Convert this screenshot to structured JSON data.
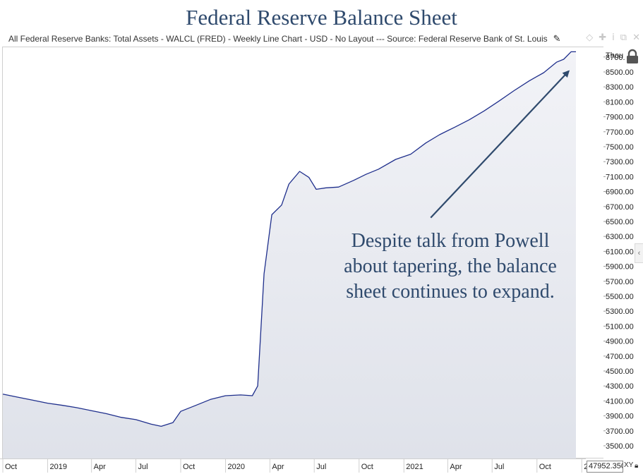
{
  "title": "Federal Reserve Balance Sheet",
  "subtitle": "All Federal Reserve Banks: Total Assets - WALCL (FRED) - Weekly Line Chart - USD - No Layout --- Source: Federal Reserve Bank of St. Louis",
  "annotation_lines": [
    "Despite talk from Powell",
    "about tapering, the balance",
    "sheet continues to expand."
  ],
  "current_value": "47952.350",
  "xy_label": "XY",
  "icons": {
    "edit": "pencil-icon",
    "window": [
      "diamond-icon",
      "pin-icon",
      "info-icon",
      "popout-icon",
      "close-icon"
    ],
    "lock": "lock-icon",
    "side_toggle": "chevron-left-icon"
  },
  "colors": {
    "title": "#2f4a6d",
    "line": "#1f2f8c",
    "area": "#e5e8ef",
    "arrow": "#2f4a6d"
  },
  "chart_data": {
    "type": "area",
    "units_label": "Thou",
    "yticks": [
      3500,
      3700,
      3900,
      4100,
      4300,
      4500,
      4700,
      4900,
      5100,
      5300,
      5500,
      5700,
      5900,
      6100,
      6300,
      6500,
      6700,
      6900,
      7100,
      7300,
      7500,
      7700,
      7900,
      8100,
      8300,
      8500,
      8700
    ],
    "ylim": [
      3330,
      8830
    ],
    "xlim": [
      "2018-10-01",
      "2021-12-20"
    ],
    "xtick_labels": [
      {
        "date": "2018-10-01",
        "label": "Oct"
      },
      {
        "date": "2019-01-01",
        "label": "2019"
      },
      {
        "date": "2019-04-01",
        "label": "Apr"
      },
      {
        "date": "2019-07-01",
        "label": "Jul"
      },
      {
        "date": "2019-10-01",
        "label": "Oct"
      },
      {
        "date": "2020-01-01",
        "label": "2020"
      },
      {
        "date": "2020-04-01",
        "label": "Apr"
      },
      {
        "date": "2020-07-01",
        "label": "Jul"
      },
      {
        "date": "2020-10-01",
        "label": "Oct"
      },
      {
        "date": "2021-01-01",
        "label": "2021"
      },
      {
        "date": "2021-04-01",
        "label": "Apr"
      },
      {
        "date": "2021-07-01",
        "label": "Jul"
      },
      {
        "date": "2021-10-01",
        "label": "Oct"
      },
      {
        "date": "2022-01-01",
        "label": "2022"
      }
    ],
    "series": [
      {
        "points": [
          [
            "2018-10-01",
            4190
          ],
          [
            "2018-11-01",
            4150
          ],
          [
            "2018-12-01",
            4110
          ],
          [
            "2019-01-01",
            4070
          ],
          [
            "2019-02-01",
            4040
          ],
          [
            "2019-03-01",
            4010
          ],
          [
            "2019-04-01",
            3970
          ],
          [
            "2019-05-01",
            3930
          ],
          [
            "2019-06-01",
            3880
          ],
          [
            "2019-07-01",
            3850
          ],
          [
            "2019-08-01",
            3790
          ],
          [
            "2019-08-22",
            3760
          ],
          [
            "2019-09-15",
            3810
          ],
          [
            "2019-10-01",
            3960
          ],
          [
            "2019-11-01",
            4040
          ],
          [
            "2019-12-01",
            4120
          ],
          [
            "2020-01-01",
            4170
          ],
          [
            "2020-02-01",
            4180
          ],
          [
            "2020-02-25",
            4170
          ],
          [
            "2020-03-07",
            4300
          ],
          [
            "2020-03-20",
            5800
          ],
          [
            "2020-04-05",
            6590
          ],
          [
            "2020-04-25",
            6720
          ],
          [
            "2020-05-10",
            7000
          ],
          [
            "2020-06-01",
            7170
          ],
          [
            "2020-06-20",
            7090
          ],
          [
            "2020-07-05",
            6930
          ],
          [
            "2020-07-25",
            6950
          ],
          [
            "2020-08-20",
            6960
          ],
          [
            "2020-09-20",
            7050
          ],
          [
            "2020-10-15",
            7130
          ],
          [
            "2020-11-10",
            7200
          ],
          [
            "2020-12-15",
            7330
          ],
          [
            "2021-01-15",
            7400
          ],
          [
            "2021-02-15",
            7550
          ],
          [
            "2021-03-15",
            7660
          ],
          [
            "2021-04-15",
            7760
          ],
          [
            "2021-05-15",
            7860
          ],
          [
            "2021-06-15",
            7980
          ],
          [
            "2021-07-15",
            8110
          ],
          [
            "2021-08-15",
            8250
          ],
          [
            "2021-09-15",
            8380
          ],
          [
            "2021-10-15",
            8490
          ],
          [
            "2021-11-10",
            8630
          ],
          [
            "2021-11-25",
            8670
          ],
          [
            "2021-12-10",
            8770
          ],
          [
            "2021-12-20",
            8770
          ]
        ]
      }
    ],
    "grid": false,
    "arrow": {
      "from": [
        "2021-02-25",
        6550
      ],
      "to": [
        "2021-12-05",
        8510
      ]
    }
  }
}
